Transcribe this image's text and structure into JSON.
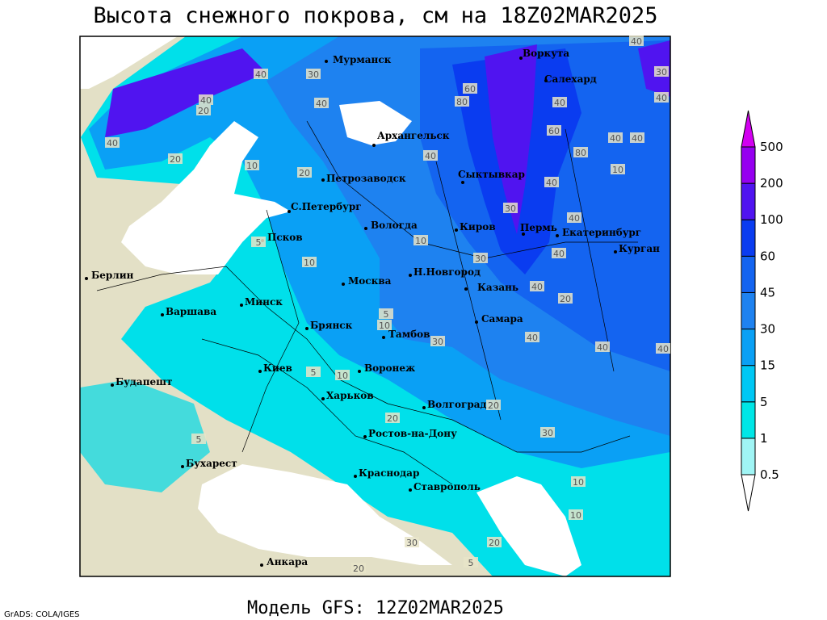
{
  "header": {
    "title": "Высота снежного покрова, см на 18Z02MAR2025"
  },
  "footer": {
    "model": "Модель GFS: 12Z02MAR2025",
    "credit": "GrADS: COLA/IGES"
  },
  "legend": {
    "levels": [
      0.5,
      1,
      5,
      15,
      30,
      45,
      60,
      100,
      200,
      500
    ],
    "colors": [
      "#ffffff",
      "#a0f5f5",
      "#00e6e6",
      "#00c8f5",
      "#0aa0f5",
      "#1e82f0",
      "#1464f0",
      "#0a3cf0",
      "#5014f0",
      "#9600f0",
      "#d200f0"
    ]
  },
  "cities": [
    {
      "name": "Мурманск"
    },
    {
      "name": "Воркута"
    },
    {
      "name": "Салехард"
    },
    {
      "name": "Архангельск"
    },
    {
      "name": "Петрозаводск"
    },
    {
      "name": "Сыктывкар"
    },
    {
      "name": "С.Петербург"
    },
    {
      "name": "Вологда"
    },
    {
      "name": "Киров"
    },
    {
      "name": "Пермь"
    },
    {
      "name": "Екатеринбург"
    },
    {
      "name": "Курган"
    },
    {
      "name": "Псков"
    },
    {
      "name": "Н.Новгород"
    },
    {
      "name": "Москва"
    },
    {
      "name": "Казань"
    },
    {
      "name": "Берлин"
    },
    {
      "name": "Минск"
    },
    {
      "name": "Варшава"
    },
    {
      "name": "Самара"
    },
    {
      "name": "Брянск"
    },
    {
      "name": "Тамбов"
    },
    {
      "name": "Киев"
    },
    {
      "name": "Воронеж"
    },
    {
      "name": "Будапешт"
    },
    {
      "name": "Харьков"
    },
    {
      "name": "Волгоград"
    },
    {
      "name": "Ростов-на-Дону"
    },
    {
      "name": "Бухарест"
    },
    {
      "name": "Краснодар"
    },
    {
      "name": "Ставрополь"
    },
    {
      "name": "Анкара"
    }
  ],
  "contour_labels": [
    40,
    30,
    40,
    20,
    40,
    80,
    60,
    40,
    40,
    40,
    60,
    80,
    40,
    40,
    20,
    10,
    20,
    40,
    30,
    40,
    40,
    30,
    10,
    40,
    5,
    10,
    30,
    40,
    40,
    40,
    20,
    5,
    10,
    10,
    30,
    20,
    20,
    10,
    10,
    30,
    10,
    5,
    40,
    20,
    20,
    5,
    30,
    40,
    5
  ]
}
